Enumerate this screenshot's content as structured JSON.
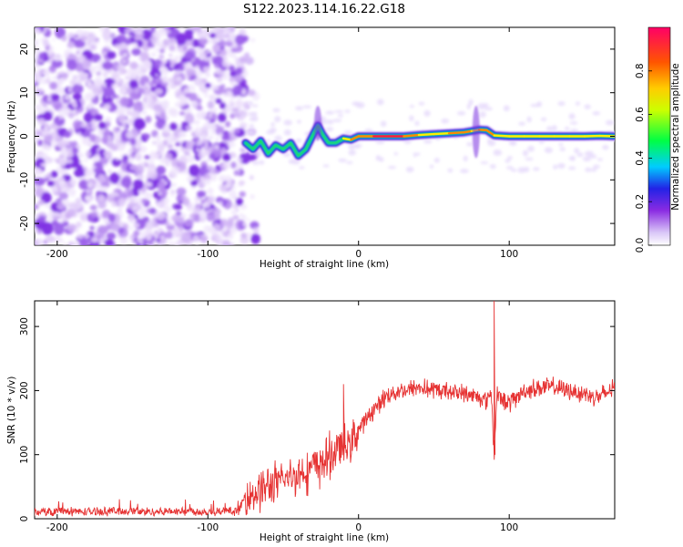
{
  "title": "S122.2023.114.16.22.G18",
  "chart_data": [
    {
      "type": "heatmap",
      "title": "S122.2023.114.16.22.G18",
      "xlabel": "Height of straight line (km)",
      "ylabel": "Frequency (Hz)",
      "xlim": [
        -215,
        170
      ],
      "ylim": [
        -25,
        25
      ],
      "xticks": [
        -200,
        -100,
        0,
        100
      ],
      "yticks": [
        -20,
        -10,
        0,
        10,
        20
      ],
      "colorbar": {
        "label": "Normalized spectral amplitude",
        "range": [
          0,
          1
        ],
        "ticks": [
          "0.0",
          "0.2",
          "0.4",
          "0.6",
          "0.8"
        ],
        "colormap": [
          "#ffffff",
          "#e6d5fa",
          "#8c2ee6",
          "#2b1fe0",
          "#00d9ff",
          "#00ff00",
          "#ffff00",
          "#ff8000",
          "#ff0033"
        ]
      },
      "noise_region_x": [
        -215,
        -75
      ],
      "ridge": {
        "x": [
          -75,
          -70,
          -65,
          -60,
          -55,
          -50,
          -45,
          -40,
          -35,
          -30,
          -27,
          -24,
          -20,
          -15,
          -10,
          -5,
          0,
          10,
          20,
          30,
          40,
          50,
          60,
          70,
          75,
          80,
          85,
          90,
          100,
          110,
          120,
          130,
          140,
          150,
          160,
          170
        ],
        "y": [
          -1.5,
          -3,
          -1,
          -4,
          -2,
          -3,
          -1.5,
          -4.5,
          -3,
          0.5,
          2.5,
          0.5,
          -1.5,
          -1.5,
          -0.5,
          -0.8,
          0,
          0,
          0,
          0,
          0.3,
          0.5,
          0.7,
          0.9,
          1.2,
          1.5,
          1.4,
          0.2,
          0,
          0,
          0,
          0,
          0,
          0,
          0.1,
          0
        ],
        "amplitude": [
          0.45,
          0.5,
          0.45,
          0.55,
          0.5,
          0.45,
          0.5,
          0.45,
          0.55,
          0.6,
          0.6,
          0.55,
          0.6,
          0.65,
          0.7,
          0.75,
          0.85,
          0.9,
          0.95,
          0.9,
          0.75,
          0.7,
          0.8,
          0.85,
          0.85,
          0.7,
          0.9,
          0.8,
          0.7,
          0.75,
          0.7,
          0.7,
          0.72,
          0.7,
          0.75,
          0.7
        ]
      }
    },
    {
      "type": "line",
      "xlabel": "Height of straight line (km)",
      "ylabel": "SNR (10 * v/v)",
      "xlim": [
        -215,
        170
      ],
      "ylim": [
        0,
        340
      ],
      "xticks": [
        -200,
        -100,
        0,
        100
      ],
      "yticks": [
        0,
        100,
        200,
        300
      ],
      "color": "#e63333",
      "series": [
        {
          "x": [
            -215,
            -200,
            -180,
            -160,
            -140,
            -120,
            -100,
            -80,
            -75,
            -70,
            -65,
            -60,
            -55,
            -50,
            -45,
            -40,
            -35,
            -30,
            -25,
            -20,
            -15,
            -12,
            -10,
            -5,
            0,
            10,
            20,
            30,
            40,
            50,
            60,
            70,
            80,
            85,
            88,
            90,
            92,
            95,
            100,
            110,
            120,
            130,
            140,
            150,
            160,
            170
          ],
          "y": [
            10,
            12,
            11,
            12,
            11,
            12,
            11,
            12,
            35,
            40,
            45,
            50,
            55,
            60,
            65,
            70,
            75,
            80,
            85,
            95,
            105,
            115,
            110,
            120,
            140,
            170,
            195,
            200,
            205,
            200,
            200,
            195,
            190,
            185,
            200,
            100,
            200,
            185,
            180,
            200,
            205,
            205,
            200,
            195,
            190,
            205
          ]
        }
      ],
      "spikes": [
        {
          "x": -10,
          "y": 210
        },
        {
          "x": 90,
          "y": 340
        },
        {
          "x": 90,
          "y": 100
        }
      ]
    }
  ]
}
